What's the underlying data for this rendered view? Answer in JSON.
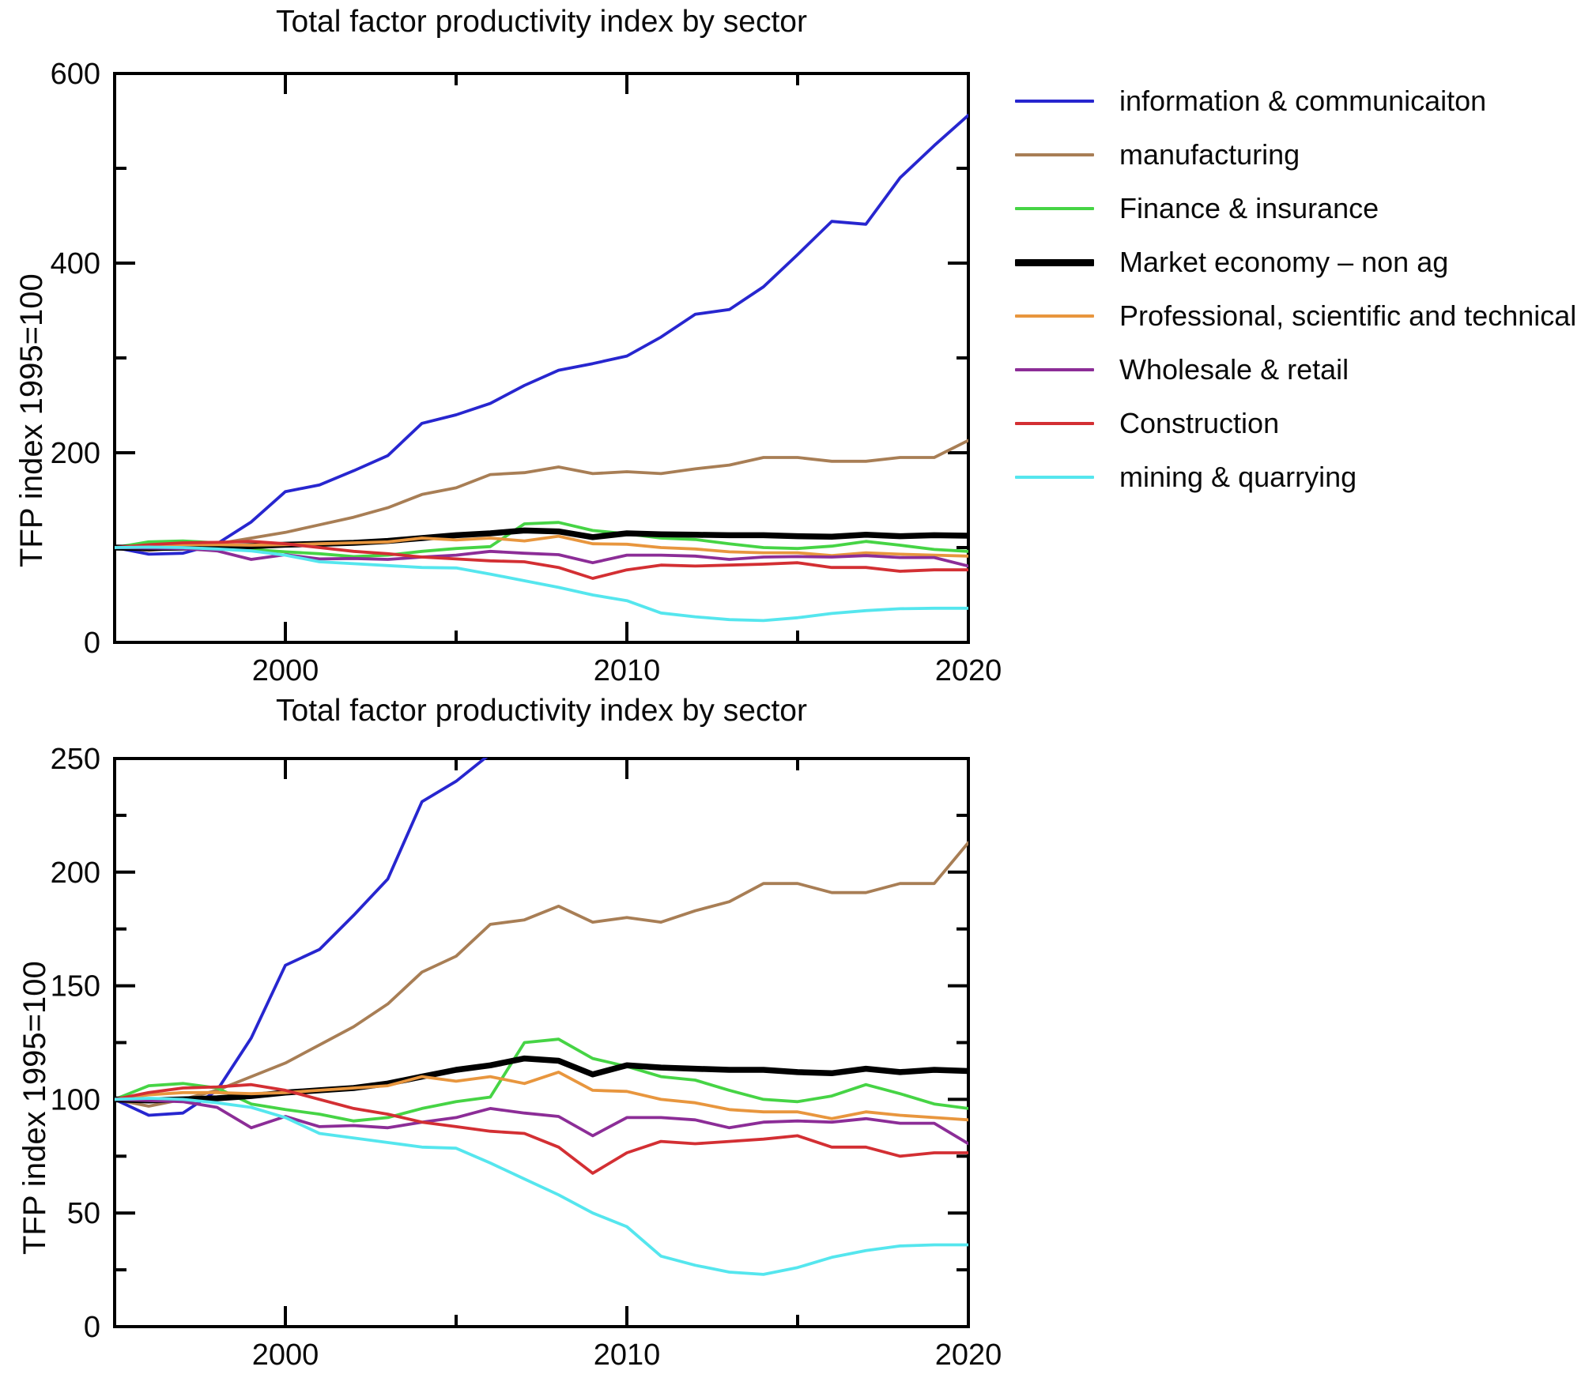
{
  "page": {
    "background": "#ffffff"
  },
  "chart_data": {
    "type": "line",
    "grid": false,
    "legend_position": "right-of-top-chart",
    "x_years": [
      1995,
      1996,
      1997,
      1998,
      1999,
      2000,
      2001,
      2002,
      2003,
      2004,
      2005,
      2006,
      2007,
      2008,
      2009,
      2010,
      2011,
      2012,
      2013,
      2014,
      2015,
      2016,
      2017,
      2018,
      2019,
      2020
    ],
    "xlim": [
      1995,
      2020
    ],
    "xticks_labeled": [
      2000,
      2010,
      2020
    ],
    "xticks_minor": [
      2005,
      2015
    ],
    "series": [
      {
        "name": "information & communicaiton",
        "color": "#2726cf",
        "thick": false,
        "values": [
          100,
          93,
          94,
          104,
          127,
          159,
          166,
          181,
          197,
          231,
          240,
          252,
          271,
          287,
          294,
          302,
          322,
          346,
          351,
          375,
          409,
          444,
          441,
          490,
          524,
          556
        ]
      },
      {
        "name": "manufacturing",
        "color": "#a87e55",
        "thick": false,
        "values": [
          100,
          97,
          100,
          104,
          110,
          116,
          124,
          132,
          142,
          156,
          163,
          177,
          179,
          185,
          178,
          180,
          178,
          183,
          187,
          195,
          195,
          191,
          191,
          195,
          195,
          213
        ]
      },
      {
        "name": "Finance & insurance",
        "color": "#46d445",
        "thick": false,
        "values": [
          100,
          106,
          107,
          105,
          98,
          95.5,
          93.5,
          90.5,
          92,
          96,
          99,
          101,
          125,
          126.5,
          118,
          114.5,
          110,
          108.5,
          104,
          100,
          99,
          101.5,
          106.5,
          102.5,
          98,
          96
        ]
      },
      {
        "name": "Market economy – non ag",
        "color": "#000000",
        "thick": true,
        "values": [
          100,
          99.5,
          100,
          100.5,
          101.5,
          103,
          104,
          105,
          107,
          110,
          113,
          115,
          118,
          117,
          111,
          115,
          114,
          113.5,
          113,
          113,
          112,
          111.5,
          113.5,
          112,
          113,
          112.5
        ]
      },
      {
        "name": "Professional, scientific and technical",
        "color": "#e8963e",
        "thick": false,
        "values": [
          100,
          102,
          103,
          103,
          102.5,
          103,
          104,
          105,
          106,
          110,
          108,
          110,
          107,
          112,
          104,
          103.5,
          100,
          98.5,
          95.5,
          94.5,
          94.5,
          91.5,
          94.5,
          93,
          92,
          91
        ]
      },
      {
        "name": "Wholesale & retail",
        "color": "#8c2d97",
        "thick": false,
        "values": [
          100,
          99.5,
          99,
          96.5,
          87.5,
          92.5,
          88,
          88.5,
          87.5,
          90,
          92,
          96,
          94,
          92.5,
          84,
          92,
          92,
          91,
          87.5,
          90,
          90.5,
          90,
          91.5,
          89.5,
          89.5,
          80.5
        ]
      },
      {
        "name": "Construction",
        "color": "#d32f33",
        "thick": false,
        "values": [
          100,
          103,
          105,
          105.5,
          106.5,
          104,
          100,
          96,
          93.5,
          90,
          88,
          86,
          85,
          79,
          67.5,
          76.5,
          81.5,
          80.5,
          81.5,
          82.5,
          84,
          79,
          79,
          75,
          76.5,
          76.5
        ]
      },
      {
        "name": "mining & quarrying",
        "color": "#55e6ee",
        "thick": false,
        "values": [
          100,
          100.5,
          100,
          98.5,
          96.5,
          92,
          85,
          83,
          81,
          79,
          78.5,
          72,
          65,
          58,
          50,
          44,
          31,
          27,
          24,
          23,
          26,
          30.5,
          33.5,
          35.5,
          36,
          36
        ]
      }
    ],
    "panels": [
      {
        "title": "Total factor productivity index by sector",
        "ylabel": "TFP index 1995=100",
        "ylim": [
          0,
          600
        ],
        "yticks_labeled": [
          0,
          200,
          400,
          600
        ],
        "yticks_minor": [
          100,
          300,
          500
        ]
      },
      {
        "title": "Total factor productivity index by sector",
        "ylabel": "TFP index 1995=100",
        "ylim": [
          0,
          250
        ],
        "yticks_labeled": [
          0,
          50,
          100,
          150,
          200,
          250
        ],
        "yticks_minor": [
          25,
          75,
          125,
          175,
          225
        ]
      }
    ]
  }
}
